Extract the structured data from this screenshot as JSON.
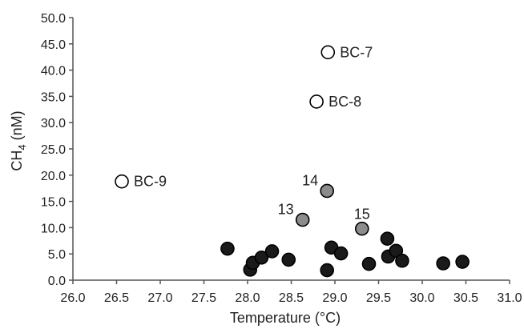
{
  "chart_data": {
    "type": "scatter",
    "title": "",
    "xlabel": "Temperature (°C)",
    "ylabel_main": "CH",
    "ylabel_sub": "4",
    "ylabel_unit": " (nM)",
    "xlim": [
      26.0,
      31.0
    ],
    "ylim": [
      0.0,
      50.0
    ],
    "x_ticks": [
      "26.0",
      "26.5",
      "27.0",
      "27.5",
      "28.0",
      "28.5",
      "29.0",
      "29.5",
      "30.0",
      "30.5",
      "31.0"
    ],
    "y_ticks": [
      "0.0",
      "5.0",
      "10.0",
      "15.0",
      "20.0",
      "25.0",
      "30.0",
      "35.0",
      "40.0",
      "45.0",
      "50.0"
    ],
    "grid": false,
    "legend": "none",
    "series": [
      {
        "style": "open",
        "color": "#ffffff",
        "stroke": "#000000",
        "points": [
          {
            "x": 28.92,
            "y": 43.4,
            "label": "BC-7"
          },
          {
            "x": 28.79,
            "y": 34.0,
            "label": "BC-8"
          },
          {
            "x": 26.56,
            "y": 18.8,
            "label": "BC-9"
          }
        ]
      },
      {
        "style": "gray",
        "color": "#8c8c8c",
        "stroke": "#000000",
        "points": [
          {
            "x": 28.91,
            "y": 17.0,
            "label": "14"
          },
          {
            "x": 28.63,
            "y": 11.5,
            "label": "13"
          },
          {
            "x": 29.31,
            "y": 9.8,
            "label": "15"
          }
        ]
      },
      {
        "style": "filled",
        "color": "#1a1a1a",
        "stroke": "#000000",
        "points": [
          {
            "x": 27.77,
            "y": 6.0
          },
          {
            "x": 28.03,
            "y": 2.0
          },
          {
            "x": 28.06,
            "y": 3.3
          },
          {
            "x": 28.16,
            "y": 4.3
          },
          {
            "x": 28.28,
            "y": 5.5
          },
          {
            "x": 28.47,
            "y": 3.9
          },
          {
            "x": 28.91,
            "y": 1.9
          },
          {
            "x": 28.96,
            "y": 6.2
          },
          {
            "x": 29.07,
            "y": 5.1
          },
          {
            "x": 29.39,
            "y": 3.1
          },
          {
            "x": 29.6,
            "y": 7.9
          },
          {
            "x": 29.61,
            "y": 4.5
          },
          {
            "x": 29.7,
            "y": 5.6
          },
          {
            "x": 29.77,
            "y": 3.7
          },
          {
            "x": 30.24,
            "y": 3.2
          },
          {
            "x": 30.46,
            "y": 3.5
          }
        ]
      }
    ]
  }
}
